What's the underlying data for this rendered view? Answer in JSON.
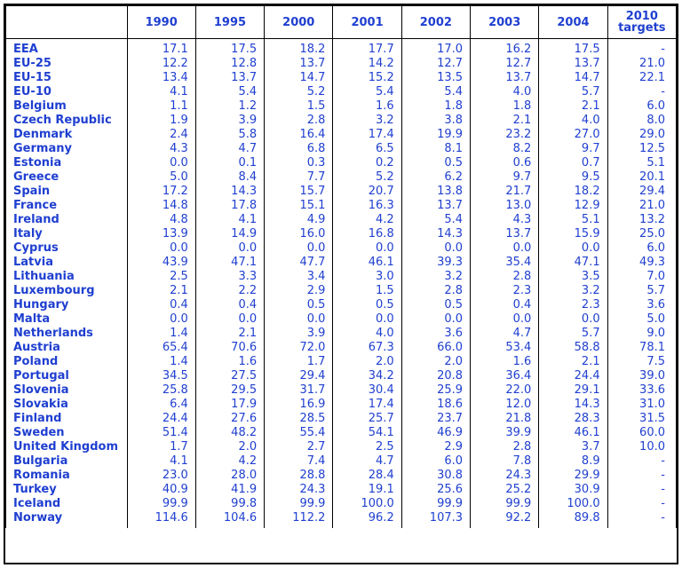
{
  "header": {
    "corner": "",
    "years": [
      "1990",
      "1995",
      "2000",
      "2001",
      "2002",
      "2003",
      "2004"
    ],
    "target_line1": "2010",
    "target_line2": "targets"
  },
  "rows": [
    {
      "name": "EEA",
      "values": [
        "17.1",
        "17.5",
        "18.2",
        "17.7",
        "17.0",
        "16.2",
        "17.5"
      ],
      "target": "-"
    },
    {
      "name": "EU-25",
      "values": [
        "12.2",
        "12.8",
        "13.7",
        "14.2",
        "12.7",
        "12.7",
        "13.7"
      ],
      "target": "21.0"
    },
    {
      "name": "EU-15",
      "values": [
        "13.4",
        "13.7",
        "14.7",
        "15.2",
        "13.5",
        "13.7",
        "14.7"
      ],
      "target": "22.1"
    },
    {
      "name": "EU-10",
      "values": [
        "4.1",
        "5.4",
        "5.2",
        "5.4",
        "5.4",
        "4.0",
        "5.7"
      ],
      "target": "-"
    },
    {
      "name": "Belgium",
      "values": [
        "1.1",
        "1.2",
        "1.5",
        "1.6",
        "1.8",
        "1.8",
        "2.1"
      ],
      "target": "6.0"
    },
    {
      "name": "Czech Republic",
      "values": [
        "1.9",
        "3.9",
        "2.8",
        "3.2",
        "3.8",
        "2.1",
        "4.0"
      ],
      "target": "8.0"
    },
    {
      "name": "Denmark",
      "values": [
        "2.4",
        "5.8",
        "16.4",
        "17.4",
        "19.9",
        "23.2",
        "27.0"
      ],
      "target": "29.0"
    },
    {
      "name": "Germany",
      "values": [
        "4.3",
        "4.7",
        "6.8",
        "6.5",
        "8.1",
        "8.2",
        "9.7"
      ],
      "target": "12.5"
    },
    {
      "name": "Estonia",
      "values": [
        "0.0",
        "0.1",
        "0.3",
        "0.2",
        "0.5",
        "0.6",
        "0.7"
      ],
      "target": "5.1"
    },
    {
      "name": "Greece",
      "values": [
        "5.0",
        "8.4",
        "7.7",
        "5.2",
        "6.2",
        "9.7",
        "9.5"
      ],
      "target": "20.1"
    },
    {
      "name": "Spain",
      "values": [
        "17.2",
        "14.3",
        "15.7",
        "20.7",
        "13.8",
        "21.7",
        "18.2"
      ],
      "target": "29.4"
    },
    {
      "name": "France",
      "values": [
        "14.8",
        "17.8",
        "15.1",
        "16.3",
        "13.7",
        "13.0",
        "12.9"
      ],
      "target": "21.0"
    },
    {
      "name": "Ireland",
      "values": [
        "4.8",
        "4.1",
        "4.9",
        "4.2",
        "5.4",
        "4.3",
        "5.1"
      ],
      "target": "13.2"
    },
    {
      "name": "Italy",
      "values": [
        "13.9",
        "14.9",
        "16.0",
        "16.8",
        "14.3",
        "13.7",
        "15.9"
      ],
      "target": "25.0"
    },
    {
      "name": "Cyprus",
      "values": [
        "0.0",
        "0.0",
        "0.0",
        "0.0",
        "0.0",
        "0.0",
        "0.0"
      ],
      "target": "6.0"
    },
    {
      "name": "Latvia",
      "values": [
        "43.9",
        "47.1",
        "47.7",
        "46.1",
        "39.3",
        "35.4",
        "47.1"
      ],
      "target": "49.3"
    },
    {
      "name": "Lithuania",
      "values": [
        "2.5",
        "3.3",
        "3.4",
        "3.0",
        "3.2",
        "2.8",
        "3.5"
      ],
      "target": "7.0"
    },
    {
      "name": "Luxembourg",
      "values": [
        "2.1",
        "2.2",
        "2.9",
        "1.5",
        "2.8",
        "2.3",
        "3.2"
      ],
      "target": "5.7"
    },
    {
      "name": "Hungary",
      "values": [
        "0.4",
        "0.4",
        "0.5",
        "0.5",
        "0.5",
        "0.4",
        "2.3"
      ],
      "target": "3.6"
    },
    {
      "name": "Malta",
      "values": [
        "0.0",
        "0.0",
        "0.0",
        "0.0",
        "0.0",
        "0.0",
        "0.0"
      ],
      "target": "5.0"
    },
    {
      "name": "Netherlands",
      "values": [
        "1.4",
        "2.1",
        "3.9",
        "4.0",
        "3.6",
        "4.7",
        "5.7"
      ],
      "target": "9.0"
    },
    {
      "name": "Austria",
      "values": [
        "65.4",
        "70.6",
        "72.0",
        "67.3",
        "66.0",
        "53.4",
        "58.8"
      ],
      "target": "78.1"
    },
    {
      "name": "Poland",
      "values": [
        "1.4",
        "1.6",
        "1.7",
        "2.0",
        "2.0",
        "1.6",
        "2.1"
      ],
      "target": "7.5"
    },
    {
      "name": "Portugal",
      "values": [
        "34.5",
        "27.5",
        "29.4",
        "34.2",
        "20.8",
        "36.4",
        "24.4"
      ],
      "target": "39.0"
    },
    {
      "name": "Slovenia",
      "values": [
        "25.8",
        "29.5",
        "31.7",
        "30.4",
        "25.9",
        "22.0",
        "29.1"
      ],
      "target": "33.6"
    },
    {
      "name": "Slovakia",
      "values": [
        "6.4",
        "17.9",
        "16.9",
        "17.4",
        "18.6",
        "12.0",
        "14.3"
      ],
      "target": "31.0"
    },
    {
      "name": "Finland",
      "values": [
        "24.4",
        "27.6",
        "28.5",
        "25.7",
        "23.7",
        "21.8",
        "28.3"
      ],
      "target": "31.5"
    },
    {
      "name": "Sweden",
      "values": [
        "51.4",
        "48.2",
        "55.4",
        "54.1",
        "46.9",
        "39.9",
        "46.1"
      ],
      "target": "60.0"
    },
    {
      "name": "United Kingdom",
      "values": [
        "1.7",
        "2.0",
        "2.7",
        "2.5",
        "2.9",
        "2.8",
        "3.7"
      ],
      "target": "10.0"
    },
    {
      "name": "Bulgaria",
      "values": [
        "4.1",
        "4.2",
        "7.4",
        "4.7",
        "6.0",
        "7.8",
        "8.9"
      ],
      "target": "-"
    },
    {
      "name": "Romania",
      "values": [
        "23.0",
        "28.0",
        "28.8",
        "28.4",
        "30.8",
        "24.3",
        "29.9"
      ],
      "target": "-"
    },
    {
      "name": "Turkey",
      "values": [
        "40.9",
        "41.9",
        "24.3",
        "19.1",
        "25.6",
        "25.2",
        "30.9"
      ],
      "target": "-"
    },
    {
      "name": "Iceland",
      "values": [
        "99.9",
        "99.8",
        "99.9",
        "100.0",
        "99.9",
        "99.9",
        "100.0"
      ],
      "target": "-"
    },
    {
      "name": "Norway",
      "values": [
        "114.6",
        "104.6",
        "112.2",
        "96.2",
        "107.3",
        "92.2",
        "89.8"
      ],
      "target": "-"
    }
  ]
}
